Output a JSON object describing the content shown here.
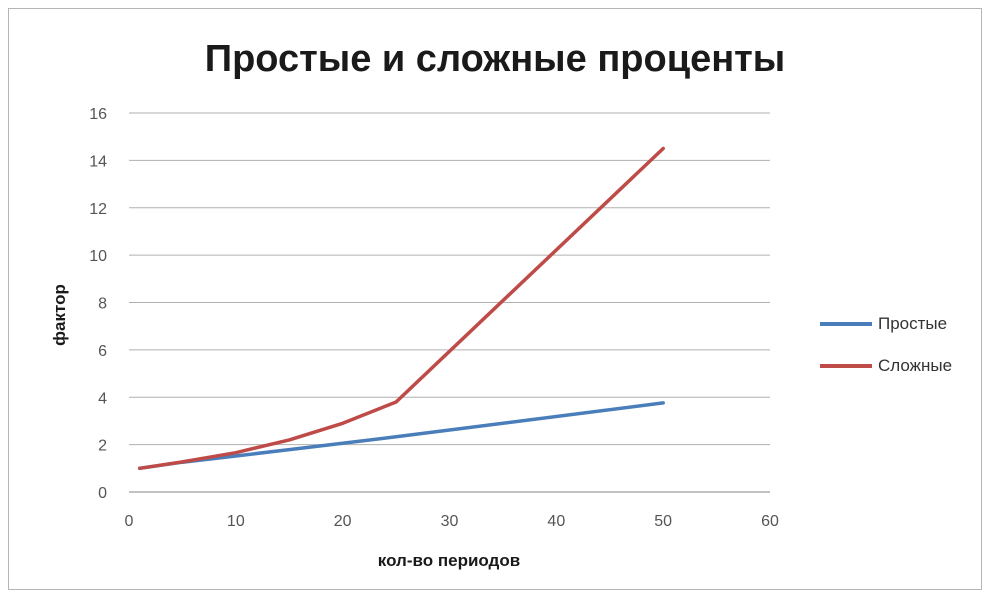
{
  "chart_data": {
    "type": "line",
    "title": "Простые и сложные проценты",
    "xlabel": "кол-во периодов",
    "ylabel": "фактор",
    "xlim": [
      0,
      60
    ],
    "ylim": [
      0,
      16
    ],
    "x_ticks": [
      "0",
      "10",
      "20",
      "30",
      "40",
      "50",
      "60"
    ],
    "y_ticks": [
      "0",
      "2",
      "4",
      "6",
      "8",
      "10",
      "12",
      "14",
      "16"
    ],
    "grid": "horizontal",
    "legend_position": "right",
    "series": [
      {
        "name": "Простые",
        "color": "#4a7ebb",
        "x": [
          1,
          5,
          10,
          15,
          20,
          25,
          50
        ],
        "y": [
          1.0,
          1.26,
          1.52,
          1.79,
          2.06,
          2.33,
          3.76
        ]
      },
      {
        "name": "Сложные",
        "color": "#be4b48",
        "x": [
          1,
          5,
          10,
          15,
          20,
          25,
          50
        ],
        "y": [
          1.0,
          1.27,
          1.66,
          2.2,
          2.9,
          3.8,
          14.5
        ]
      }
    ]
  }
}
